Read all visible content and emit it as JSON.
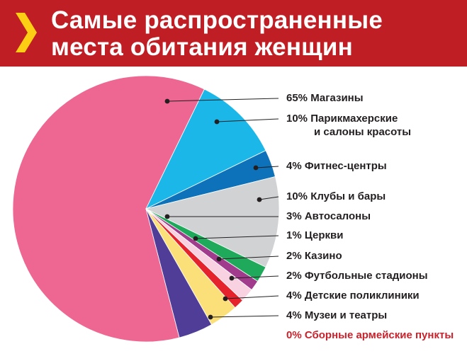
{
  "header": {
    "title_line1": "Самые распространенные",
    "title_line2": "места обитания женщин",
    "background": "#bf1e24",
    "chevron_color": "#fccf14",
    "chevron_icon": "chevron-right-icon"
  },
  "chart_data": {
    "type": "pie",
    "title": "Самые распространенные места обитания женщин",
    "unit": "%",
    "slices": [
      {
        "label": "65% Магазины",
        "value": 65,
        "color": "#ee6692"
      },
      {
        "label": "10% Парикмахерские и салоны красоты",
        "label_lines": [
          "10% Парикмахерские",
          "и салоны красоты"
        ],
        "value": 10,
        "color": "#1ab7e8"
      },
      {
        "label": "4% Фитнес-центры",
        "value": 4,
        "color": "#0d72b9"
      },
      {
        "label": "10% Клубы и бары",
        "value": 10,
        "color": "#d1d2d4"
      },
      {
        "label": "3% Автосалоны",
        "value": 3,
        "color": "#d1d2d4"
      },
      {
        "label": "1% Церкви",
        "value": 1,
        "color": "#d1d2d4"
      },
      {
        "label": "2% Казино",
        "value": 2,
        "color": "#1faa5b"
      },
      {
        "label": "2% Футбольные стадионы",
        "value": 2,
        "color": "#a13b8c"
      },
      {
        "label": "4% Детские поликлиники",
        "value": 4,
        "color": "#f9d2e2"
      },
      {
        "label": "4% Музеи и театры",
        "value": 4,
        "color": "#e4232c"
      },
      {
        "label": "0% Сборные армейские пункты",
        "value": 0,
        "color": "#c8232c"
      }
    ],
    "extra_wedges": [
      {
        "value": 3,
        "color": "#fbe07a"
      },
      {
        "value": 3,
        "color": "#4f3d97"
      }
    ],
    "legend_placement": "right",
    "leader_line_color": "#231f20"
  }
}
